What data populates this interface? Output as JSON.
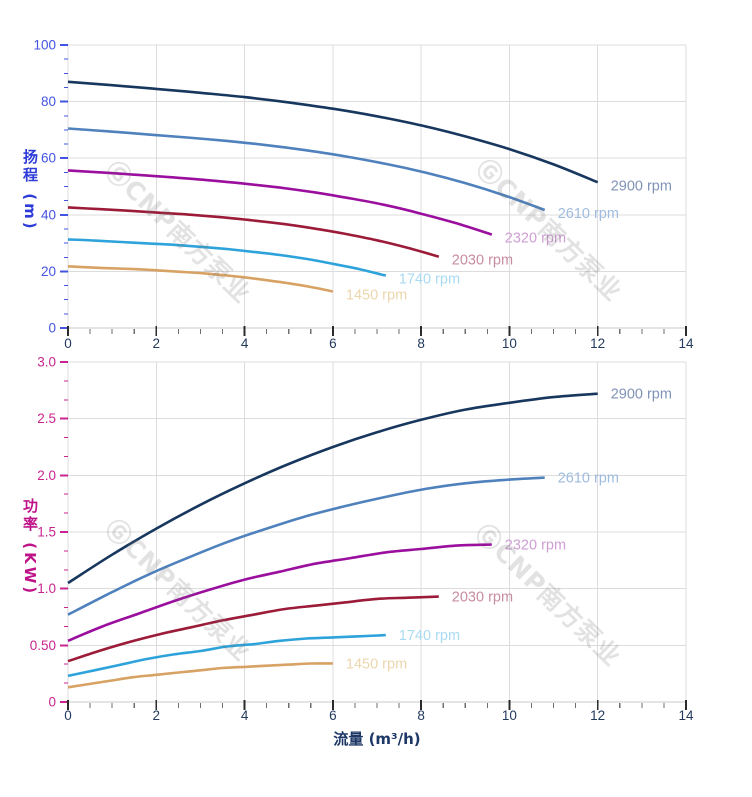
{
  "watermark": {
    "text": "ⒼCNP南方泵业"
  },
  "flow_axis": {
    "title": "流量 (m³/h)",
    "tick_labels": [
      "0",
      "2",
      "4",
      "6",
      "8",
      "10",
      "12",
      "14"
    ],
    "tick_values": [
      0,
      2,
      4,
      6,
      8,
      10,
      12,
      14
    ],
    "minor_step": 0.5,
    "max": 14,
    "label_color": "#233a5e",
    "title_color": "#1d3766",
    "axis_line_color": "#c9c9c9",
    "major_tick_color": "#2b2b2b",
    "minor_tick_color": "#6e6e6e"
  },
  "grid_color": "#dcdcdc",
  "chart_data": [
    {
      "type": "line",
      "title": "",
      "xlabel": "流量 (m³/h)",
      "ylabel": "扬程 (m)",
      "xlim": [
        0,
        14
      ],
      "ylim": [
        0,
        100
      ],
      "grid": true,
      "legend_position": "inline-end-of-curve",
      "x_ticks": [
        0,
        2,
        4,
        6,
        8,
        10,
        12,
        14
      ],
      "x_tick_labels": [
        "0",
        "2",
        "4",
        "6",
        "8",
        "10",
        "12",
        "14"
      ],
      "y_ticks": [
        0,
        20,
        40,
        60,
        80,
        100
      ],
      "y_tick_labels": [
        "0",
        "20",
        "40",
        "60",
        "80",
        "100"
      ],
      "y_minor_step": 5,
      "axis_color": "#4454e2",
      "title_color": "#2d3cd8",
      "series": [
        {
          "name": "2900 rpm",
          "color": "#17375e",
          "label_color": "#8093b7",
          "x": [
            0,
            1,
            2,
            3,
            4,
            5,
            6,
            7,
            8,
            9,
            10,
            11,
            12
          ],
          "y": [
            87,
            85.8,
            84.5,
            83.1,
            81.6,
            79.7,
            77.5,
            74.8,
            71.6,
            67.7,
            63.2,
            57.8,
            51.5
          ]
        },
        {
          "name": "2610 rpm",
          "color": "#4f81bd",
          "label_color": "#9fbbdf",
          "x": [
            0,
            0.9,
            1.8,
            2.7,
            3.6,
            4.5,
            5.4,
            6.3,
            7.2,
            8.1,
            9,
            9.9,
            10.8
          ],
          "y": [
            70.5,
            69.5,
            68.4,
            67.3,
            66.1,
            64.6,
            62.8,
            60.6,
            58,
            54.9,
            51.2,
            46.8,
            41.7
          ]
        },
        {
          "name": "2320 rpm",
          "color": "#9a0f9e",
          "label_color": "#cf9fd3",
          "x": [
            0,
            0.8,
            1.6,
            2.4,
            3.2,
            4,
            4.8,
            5.6,
            6.4,
            7.2,
            8,
            8.8,
            9.6
          ],
          "y": [
            55.7,
            54.9,
            54.1,
            53.2,
            52.2,
            51,
            49.6,
            47.9,
            45.8,
            43.4,
            40.4,
            37,
            33
          ]
        },
        {
          "name": "2030 rpm",
          "color": "#9b1b39",
          "label_color": "#c88ca0",
          "x": [
            0,
            0.7,
            1.4,
            2.1,
            2.8,
            3.5,
            4.2,
            4.9,
            5.6,
            6.3,
            7,
            7.7,
            8.4
          ],
          "y": [
            42.6,
            42,
            41.4,
            40.7,
            40,
            39.1,
            38,
            36.7,
            35.1,
            33.2,
            31,
            28.3,
            25.2
          ]
        },
        {
          "name": "1740 rpm",
          "color": "#2ea3db",
          "label_color": "#a9daf2",
          "x": [
            0,
            0.6,
            1.2,
            1.8,
            2.4,
            3,
            3.6,
            4.2,
            4.8,
            5.4,
            6,
            6.6,
            7.2
          ],
          "y": [
            31.3,
            30.9,
            30.4,
            29.9,
            29.4,
            28.7,
            27.9,
            26.9,
            25.8,
            24.4,
            22.7,
            20.8,
            18.5
          ]
        },
        {
          "name": "1450 rpm",
          "color": "#d7a263",
          "label_color": "#ecd6ae",
          "x": [
            0,
            0.5,
            1,
            1.5,
            2,
            2.5,
            3,
            3.5,
            4,
            4.5,
            5,
            5.5,
            6
          ],
          "y": [
            21.8,
            21.4,
            21.1,
            20.8,
            20.4,
            19.9,
            19.4,
            18.7,
            17.9,
            16.9,
            15.8,
            14.5,
            12.9
          ]
        }
      ]
    },
    {
      "type": "line",
      "title": "",
      "xlabel": "流量 (m³/h)",
      "ylabel": "功率 (KW)",
      "xlim": [
        0,
        14
      ],
      "ylim": [
        0,
        3
      ],
      "grid": true,
      "legend_position": "inline-end-of-curve",
      "x_ticks": [
        0,
        2,
        4,
        6,
        8,
        10,
        12,
        14
      ],
      "x_tick_labels": [
        "0",
        "2",
        "4",
        "6",
        "8",
        "10",
        "12",
        "14"
      ],
      "y_ticks": [
        0,
        0.5,
        1,
        1.5,
        2,
        2.5,
        3
      ],
      "y_tick_labels": [
        "0",
        "0.50",
        "1.0",
        "1.5",
        "2.0",
        "2.5",
        "3.0"
      ],
      "y_minor_step": 0.166667,
      "axis_color": "#c9258f",
      "title_color": "#bf1489",
      "series": [
        {
          "name": "2900 rpm",
          "color": "#17375e",
          "label_color": "#8093b7",
          "x": [
            0,
            1,
            2,
            3,
            4,
            5,
            6,
            7,
            8,
            9,
            10,
            11,
            12
          ],
          "y": [
            1.05,
            1.3,
            1.53,
            1.74,
            1.93,
            2.1,
            2.25,
            2.38,
            2.49,
            2.58,
            2.64,
            2.69,
            2.72
          ]
        },
        {
          "name": "2610 rpm",
          "color": "#4f81bd",
          "label_color": "#9fbbdf",
          "x": [
            0,
            0.9,
            1.8,
            2.7,
            3.6,
            4.5,
            5.4,
            6.3,
            7.2,
            8.1,
            9,
            9.9,
            10.8
          ],
          "y": [
            0.77,
            0.95,
            1.12,
            1.27,
            1.41,
            1.53,
            1.64,
            1.73,
            1.81,
            1.88,
            1.93,
            1.96,
            1.98
          ]
        },
        {
          "name": "2320 rpm",
          "color": "#9a0f9e",
          "label_color": "#cf9fd3",
          "x": [
            0,
            0.8,
            1.6,
            2.4,
            3.2,
            4,
            4.8,
            5.6,
            6.4,
            7.2,
            8,
            8.8,
            9.6
          ],
          "y": [
            0.54,
            0.67,
            0.78,
            0.89,
            0.99,
            1.08,
            1.15,
            1.22,
            1.27,
            1.32,
            1.35,
            1.38,
            1.39
          ]
        },
        {
          "name": "2030 rpm",
          "color": "#9b1b39",
          "label_color": "#c88ca0",
          "x": [
            0,
            0.7,
            1.4,
            2.1,
            2.8,
            3.5,
            4.2,
            4.9,
            5.6,
            6.3,
            7,
            7.7,
            8.4
          ],
          "y": [
            0.36,
            0.45,
            0.53,
            0.6,
            0.66,
            0.72,
            0.77,
            0.82,
            0.85,
            0.88,
            0.91,
            0.92,
            0.93
          ]
        },
        {
          "name": "1740 rpm",
          "color": "#2ea3db",
          "label_color": "#a9daf2",
          "x": [
            0,
            0.6,
            1.2,
            1.8,
            2.4,
            3,
            3.6,
            4.2,
            4.8,
            5.4,
            6,
            6.6,
            7.2
          ],
          "y": [
            0.23,
            0.28,
            0.33,
            0.38,
            0.42,
            0.45,
            0.49,
            0.51,
            0.54,
            0.56,
            0.57,
            0.58,
            0.59
          ]
        },
        {
          "name": "1450 rpm",
          "color": "#d7a263",
          "label_color": "#ecd6ae",
          "x": [
            0,
            0.5,
            1,
            1.5,
            2,
            2.5,
            3,
            3.5,
            4,
            4.5,
            5,
            5.5,
            6
          ],
          "y": [
            0.13,
            0.16,
            0.19,
            0.22,
            0.24,
            0.26,
            0.28,
            0.3,
            0.31,
            0.32,
            0.33,
            0.34,
            0.34
          ]
        }
      ]
    }
  ]
}
